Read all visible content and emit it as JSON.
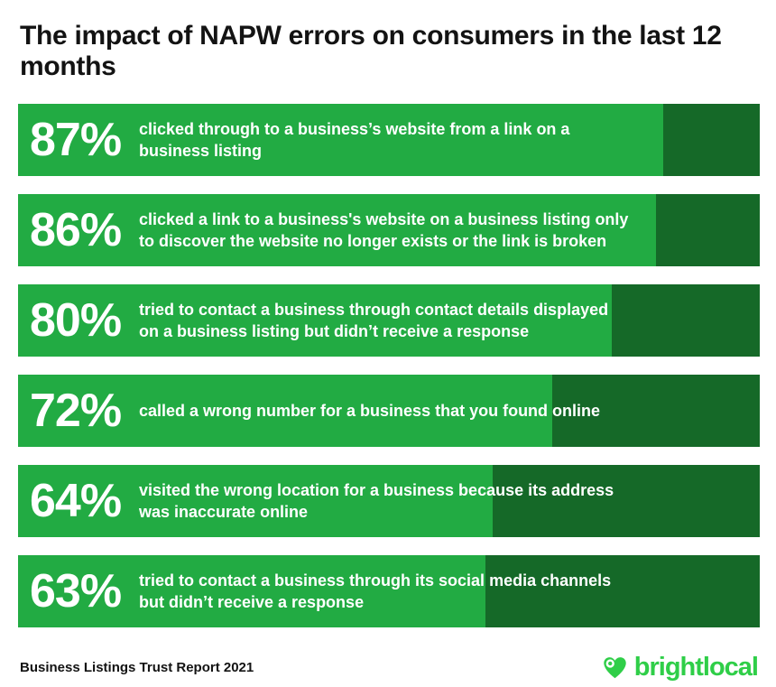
{
  "title": "The impact of NAPW errors on consumers in the last 12 months",
  "colors": {
    "green_light": "#22AB43",
    "green_dark": "#156928",
    "logo_green": "#2FCE48",
    "ink": "#131313"
  },
  "bars": [
    {
      "value": 87,
      "label": "87%",
      "description": "clicked through to a business’s website from a link on a\nbusiness listing"
    },
    {
      "value": 86,
      "label": "86%",
      "description": "clicked a link to a business's website on a business listing only\nto discover the website no longer exists or the link is broken"
    },
    {
      "value": 80,
      "label": "80%",
      "description": "tried to contact a business through contact details displayed\non a business listing but didn’t receive a response"
    },
    {
      "value": 72,
      "label": "72%",
      "description": "called a wrong number for a business that you found online"
    },
    {
      "value": 64,
      "label": "64%",
      "description": "visited the wrong location for a business because its address\nwas inaccurate online"
    },
    {
      "value": 63,
      "label": "63%",
      "description": "tried to contact a business through its social media channels\nbut didn’t receive a response"
    }
  ],
  "footer": {
    "source": "Business Listings Trust Report 2021",
    "brand": "brightlocal"
  },
  "chart_data": {
    "type": "bar",
    "orientation": "horizontal",
    "title": "The impact of NAPW errors on consumers in the last 12 months",
    "categories": [
      "clicked through to a business’s website from a link on a business listing",
      "clicked a link to a business's website on a business listing only to discover the website no longer exists or the link is broken",
      "tried to contact a business through contact details displayed on a business listing but didn’t receive a response",
      "called a wrong number for a business that you found online",
      "visited the wrong location for a business because its address was inaccurate online",
      "tried to contact a business through its social media channels but didn’t receive a response"
    ],
    "values": [
      87,
      86,
      80,
      72,
      64,
      63
    ],
    "unit": "%",
    "xlim": [
      0,
      100
    ],
    "grid": false,
    "legend": false,
    "data_labels": "inside-start",
    "source": "Business Listings Trust Report 2021"
  }
}
